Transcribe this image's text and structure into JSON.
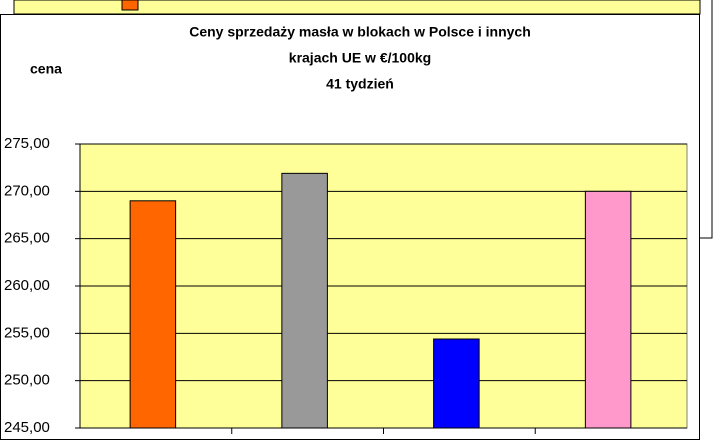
{
  "chart_data": {
    "type": "bar",
    "title": [
      "Ceny sprzedaży masła w blokach w Polsce i  innych",
      "krajach UE w €/100kg",
      "41 tydzień"
    ],
    "y_label": "cena",
    "categories": [
      null,
      null,
      null,
      null
    ],
    "values": [
      269.0,
      271.9,
      254.4,
      270.0
    ],
    "colors": [
      "#ff6600",
      "#999999",
      "#0000ff",
      "#ff99cc"
    ],
    "ylim": [
      245,
      275
    ],
    "yticks": [
      {
        "value": 245,
        "label": "245,00"
      },
      {
        "value": 250,
        "label": "250,00"
      },
      {
        "value": 255,
        "label": "255,00"
      },
      {
        "value": 260,
        "label": "260,00"
      },
      {
        "value": 265,
        "label": "265,00"
      },
      {
        "value": 270,
        "label": "270,00"
      },
      {
        "value": 275,
        "label": "275,00"
      }
    ],
    "grid": true
  }
}
